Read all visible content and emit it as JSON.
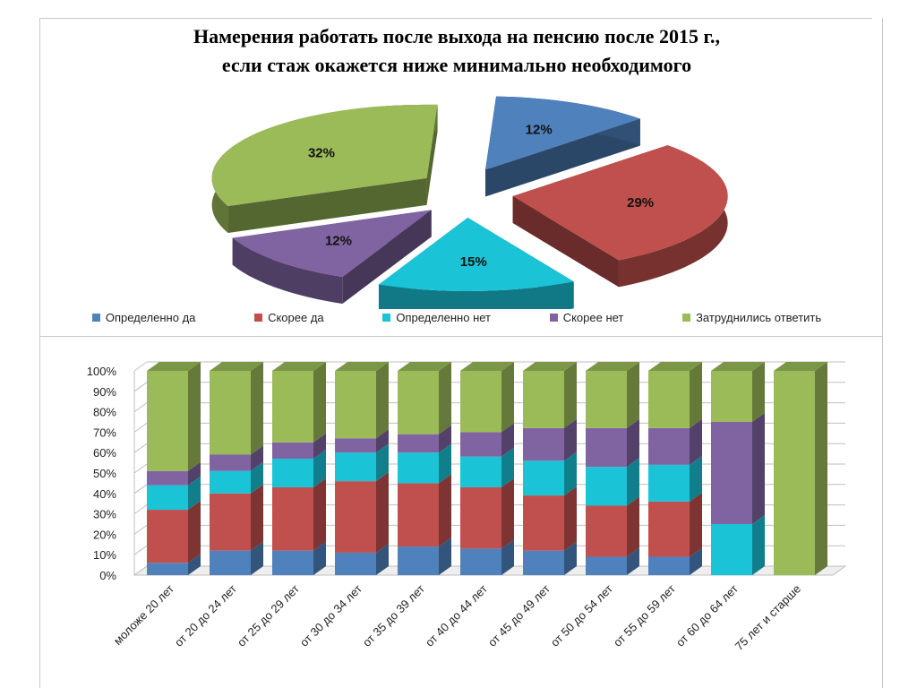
{
  "title": {
    "line1": "Намерения работать после выхода на пенсию после 2015 г.,",
    "line2": "если стаж окажется ниже минимально необходимого"
  },
  "colors": {
    "blue": "#4f81bd",
    "red": "#c0504d",
    "cyan": "#1ac3d6",
    "purple": "#8064a2",
    "green": "#9bbb59"
  },
  "legend": [
    {
      "label": "Определенно да",
      "color": "#4f81bd"
    },
    {
      "label": "Скорее да",
      "color": "#c0504d"
    },
    {
      "label": "Определенно нет",
      "color": "#1ac3d6"
    },
    {
      "label": "Скорее нет",
      "color": "#8064a2"
    },
    {
      "label": "Затруднились ответить",
      "color": "#9bbb59"
    }
  ],
  "chart_data": [
    {
      "type": "pie",
      "title": "Намерения работать после выхода на пенсию после 2015 г., если стаж окажется ниже минимально необходимого",
      "categories": [
        "Определенно да",
        "Скорее да",
        "Определенно нет",
        "Скорее нет",
        "Затруднились ответить"
      ],
      "values": [
        12,
        29,
        15,
        12,
        32
      ],
      "labels": [
        "12%",
        "29%",
        "15%",
        "12%",
        "32%"
      ],
      "style": "3d-exploded",
      "legend": "bottom"
    },
    {
      "type": "bar",
      "stacked": "percent",
      "categories": [
        "моложе 20 лет",
        "от 20 до 24 лет",
        "от 25 до 29 лет",
        "от 30 до 34 лет",
        "от 35 до 39 лет",
        "от 40 до 44 лет",
        "от 45 до 49 лет",
        "от 50 до 54 лет",
        "от 55 до 59 лет",
        "от 60 до 64 лет",
        "75 лет и старше"
      ],
      "series": [
        {
          "name": "Определенно да",
          "color": "#4f81bd",
          "values": [
            6,
            12,
            12,
            11,
            14,
            13,
            12,
            9,
            9,
            0,
            0
          ]
        },
        {
          "name": "Скорее да",
          "color": "#c0504d",
          "values": [
            26,
            28,
            31,
            35,
            31,
            30,
            27,
            25,
            27,
            0,
            0
          ]
        },
        {
          "name": "Определенно нет",
          "color": "#1ac3d6",
          "values": [
            12,
            11,
            14,
            14,
            15,
            15,
            17,
            19,
            18,
            25,
            0
          ]
        },
        {
          "name": "Скорее нет",
          "color": "#8064a2",
          "values": [
            7,
            8,
            8,
            7,
            9,
            12,
            16,
            19,
            18,
            50,
            0
          ]
        },
        {
          "name": "Затруднились ответить",
          "color": "#9bbb59",
          "values": [
            49,
            41,
            35,
            33,
            31,
            30,
            28,
            28,
            28,
            25,
            100
          ]
        }
      ],
      "yticks": [
        "0%",
        "10%",
        "20%",
        "30%",
        "40%",
        "50%",
        "60%",
        "70%",
        "80%",
        "90%",
        "100%"
      ],
      "ylim": [
        0,
        100
      ],
      "grid": true,
      "style": "3d-columns"
    }
  ]
}
